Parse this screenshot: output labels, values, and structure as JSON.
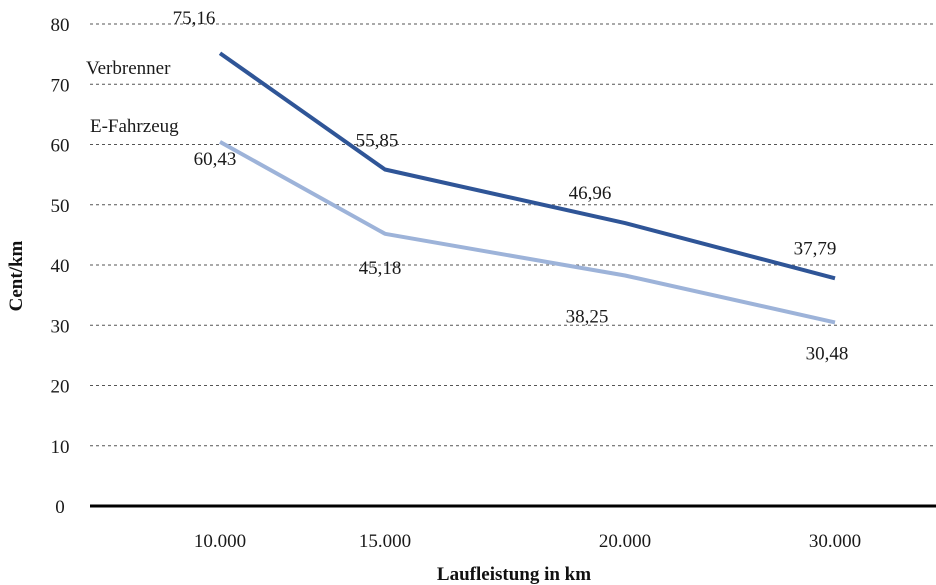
{
  "chart_data": {
    "type": "line",
    "categories": [
      "10.000",
      "15.000",
      "20.000",
      "30.000"
    ],
    "xlabel": "Laufleistung in km",
    "ylabel": "Cent/km",
    "ylim": [
      0,
      80
    ],
    "yticks": [
      "0",
      "10",
      "20",
      "30",
      "40",
      "50",
      "60",
      "70",
      "80"
    ],
    "grid": true,
    "series": [
      {
        "name": "Verbrenner",
        "values": [
          75.16,
          55.85,
          46.96,
          37.79
        ],
        "labels": [
          "75,16",
          "55,85",
          "46,96",
          "37,79"
        ],
        "color": "#2f5597"
      },
      {
        "name": "E-Fahrzeug",
        "values": [
          60.43,
          45.18,
          38.25,
          30.48
        ],
        "labels": [
          "60,43",
          "45,18",
          "38,25",
          "30,48"
        ],
        "color": "#9db3d9"
      }
    ]
  }
}
